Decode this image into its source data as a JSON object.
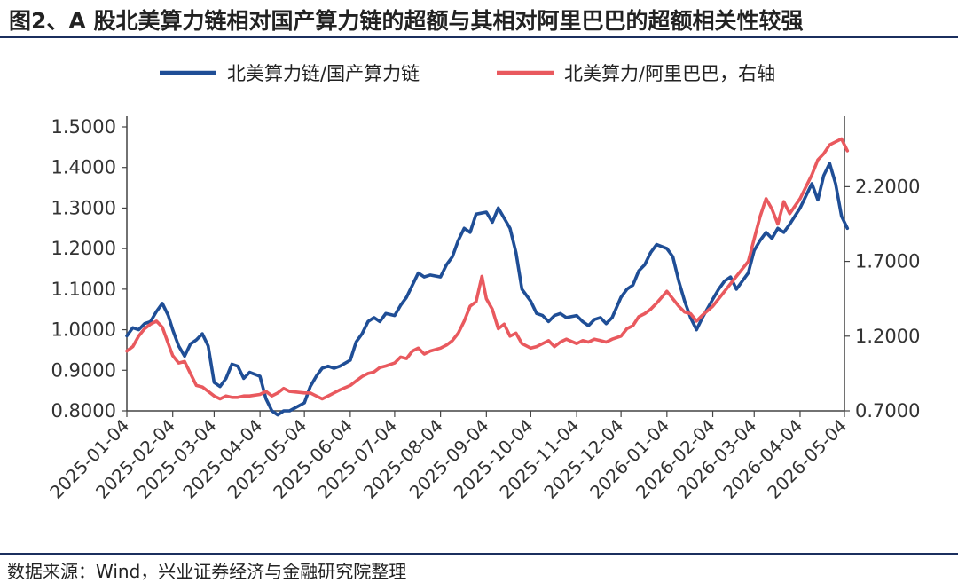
{
  "title": "图2、A 股北美算力链相对国产算力链的超额与其相对阿里巴巴的超额相关性较强",
  "source": "数据来源：Wind，兴业证券经济与金融研究院整理",
  "chart_data": {
    "type": "line",
    "title": "图2、A 股北美算力链相对国产算力链的超额与其相对阿里巴巴的超额相关性较强",
    "x_axis": {
      "type": "date",
      "ticks": [
        "2025-01-04",
        "2025-02-04",
        "2025-03-04",
        "2025-04-04",
        "2025-05-04",
        "2025-06-04",
        "2025-07-04",
        "2025-08-04",
        "2025-09-04",
        "2025-10-04",
        "2025-11-04",
        "2025-12-04",
        "2026-01-04",
        "2026-02-04",
        "2026-03-04",
        "2026-04-04",
        "2026-05-04"
      ],
      "range": [
        "2025-01-04",
        "2026-05-04"
      ]
    },
    "y_left": {
      "range": [
        0.8,
        1.5
      ],
      "ticks": [
        "0.8000",
        "0.9000",
        "1.0000",
        "1.1000",
        "1.2000",
        "1.3000",
        "1.4000",
        "1.5000"
      ]
    },
    "y_right": {
      "label": "右轴",
      "range": [
        0.7,
        2.6
      ],
      "ticks": [
        "0.7000",
        "1.2000",
        "1.7000",
        "2.2000"
      ]
    },
    "legend": {
      "position": "top"
    },
    "grid": false,
    "series": [
      {
        "name": "北美算力链/国产算力链",
        "axis": "left",
        "color": "#1f4e96",
        "points": [
          [
            "2025-01-04",
            0.985
          ],
          [
            "2025-01-08",
            1.005
          ],
          [
            "2025-01-12",
            1.0
          ],
          [
            "2025-01-16",
            1.015
          ],
          [
            "2025-01-20",
            1.02
          ],
          [
            "2025-01-24",
            1.045
          ],
          [
            "2025-01-28",
            1.065
          ],
          [
            "2025-02-01",
            1.035
          ],
          [
            "2025-02-04",
            1.0
          ],
          [
            "2025-02-08",
            0.96
          ],
          [
            "2025-02-12",
            0.935
          ],
          [
            "2025-02-16",
            0.965
          ],
          [
            "2025-02-20",
            0.975
          ],
          [
            "2025-02-24",
            0.99
          ],
          [
            "2025-02-28",
            0.96
          ],
          [
            "2025-03-04",
            0.87
          ],
          [
            "2025-03-08",
            0.86
          ],
          [
            "2025-03-12",
            0.88
          ],
          [
            "2025-03-16",
            0.915
          ],
          [
            "2025-03-20",
            0.91
          ],
          [
            "2025-03-24",
            0.88
          ],
          [
            "2025-03-28",
            0.895
          ],
          [
            "2025-04-04",
            0.885
          ],
          [
            "2025-04-08",
            0.83
          ],
          [
            "2025-04-12",
            0.8
          ],
          [
            "2025-04-16",
            0.79
          ],
          [
            "2025-04-20",
            0.8
          ],
          [
            "2025-04-24",
            0.8
          ],
          [
            "2025-05-04",
            0.82
          ],
          [
            "2025-05-08",
            0.86
          ],
          [
            "2025-05-12",
            0.885
          ],
          [
            "2025-05-16",
            0.905
          ],
          [
            "2025-05-20",
            0.91
          ],
          [
            "2025-05-24",
            0.905
          ],
          [
            "2025-05-28",
            0.91
          ],
          [
            "2025-06-04",
            0.925
          ],
          [
            "2025-06-08",
            0.97
          ],
          [
            "2025-06-12",
            0.99
          ],
          [
            "2025-06-16",
            1.02
          ],
          [
            "2025-06-20",
            1.03
          ],
          [
            "2025-06-24",
            1.02
          ],
          [
            "2025-06-28",
            1.04
          ],
          [
            "2025-07-04",
            1.035
          ],
          [
            "2025-07-08",
            1.06
          ],
          [
            "2025-07-12",
            1.08
          ],
          [
            "2025-07-16",
            1.11
          ],
          [
            "2025-07-20",
            1.14
          ],
          [
            "2025-07-24",
            1.13
          ],
          [
            "2025-07-28",
            1.135
          ],
          [
            "2025-08-04",
            1.13
          ],
          [
            "2025-08-08",
            1.16
          ],
          [
            "2025-08-12",
            1.18
          ],
          [
            "2025-08-16",
            1.22
          ],
          [
            "2025-08-20",
            1.25
          ],
          [
            "2025-08-24",
            1.24
          ],
          [
            "2025-08-28",
            1.285
          ],
          [
            "2025-09-04",
            1.29
          ],
          [
            "2025-09-08",
            1.265
          ],
          [
            "2025-09-12",
            1.3
          ],
          [
            "2025-09-16",
            1.275
          ],
          [
            "2025-09-20",
            1.25
          ],
          [
            "2025-09-24",
            1.19
          ],
          [
            "2025-09-28",
            1.1
          ],
          [
            "2025-10-04",
            1.07
          ],
          [
            "2025-10-08",
            1.04
          ],
          [
            "2025-10-12",
            1.035
          ],
          [
            "2025-10-16",
            1.02
          ],
          [
            "2025-10-20",
            1.035
          ],
          [
            "2025-10-24",
            1.04
          ],
          [
            "2025-10-28",
            1.03
          ],
          [
            "2025-11-04",
            1.035
          ],
          [
            "2025-11-08",
            1.02
          ],
          [
            "2025-11-12",
            1.01
          ],
          [
            "2025-11-16",
            1.025
          ],
          [
            "2025-11-20",
            1.03
          ],
          [
            "2025-11-24",
            1.015
          ],
          [
            "2025-11-28",
            1.03
          ],
          [
            "2025-12-04",
            1.08
          ],
          [
            "2025-12-08",
            1.1
          ],
          [
            "2025-12-12",
            1.11
          ],
          [
            "2025-12-16",
            1.145
          ],
          [
            "2025-12-20",
            1.16
          ],
          [
            "2025-12-24",
            1.19
          ],
          [
            "2025-12-28",
            1.21
          ],
          [
            "2026-01-04",
            1.2
          ],
          [
            "2026-01-08",
            1.18
          ],
          [
            "2026-01-12",
            1.12
          ],
          [
            "2026-01-16",
            1.07
          ],
          [
            "2026-01-20",
            1.03
          ],
          [
            "2026-01-24",
            1.0
          ],
          [
            "2026-01-28",
            1.03
          ],
          [
            "2026-02-04",
            1.075
          ],
          [
            "2026-02-08",
            1.1
          ],
          [
            "2026-02-12",
            1.12
          ],
          [
            "2026-02-16",
            1.13
          ],
          [
            "2026-02-20",
            1.1
          ],
          [
            "2026-02-24",
            1.12
          ],
          [
            "2026-02-28",
            1.14
          ],
          [
            "2026-03-04",
            1.195
          ],
          [
            "2026-03-08",
            1.22
          ],
          [
            "2026-03-12",
            1.24
          ],
          [
            "2026-03-16",
            1.225
          ],
          [
            "2026-03-20",
            1.25
          ],
          [
            "2026-03-24",
            1.24
          ],
          [
            "2026-03-28",
            1.26
          ],
          [
            "2026-04-04",
            1.3
          ],
          [
            "2026-04-08",
            1.33
          ],
          [
            "2026-04-12",
            1.36
          ],
          [
            "2026-04-16",
            1.32
          ],
          [
            "2026-04-20",
            1.38
          ],
          [
            "2026-04-24",
            1.41
          ],
          [
            "2026-04-28",
            1.36
          ],
          [
            "2026-05-02",
            1.28
          ],
          [
            "2026-05-06",
            1.25
          ]
        ]
      },
      {
        "name": "北美算力/阿里巴巴，右轴",
        "axis": "right",
        "color": "#e9595e",
        "points": [
          [
            "2025-01-04",
            1.1
          ],
          [
            "2025-01-08",
            1.13
          ],
          [
            "2025-01-12",
            1.2
          ],
          [
            "2025-01-16",
            1.25
          ],
          [
            "2025-01-20",
            1.28
          ],
          [
            "2025-01-24",
            1.3
          ],
          [
            "2025-01-28",
            1.26
          ],
          [
            "2025-02-01",
            1.15
          ],
          [
            "2025-02-04",
            1.07
          ],
          [
            "2025-02-08",
            1.02
          ],
          [
            "2025-02-12",
            1.03
          ],
          [
            "2025-02-16",
            0.95
          ],
          [
            "2025-02-20",
            0.87
          ],
          [
            "2025-02-24",
            0.86
          ],
          [
            "2025-02-28",
            0.83
          ],
          [
            "2025-03-04",
            0.8
          ],
          [
            "2025-03-08",
            0.78
          ],
          [
            "2025-03-12",
            0.8
          ],
          [
            "2025-03-16",
            0.79
          ],
          [
            "2025-03-20",
            0.79
          ],
          [
            "2025-03-24",
            0.8
          ],
          [
            "2025-03-28",
            0.8
          ],
          [
            "2025-04-04",
            0.81
          ],
          [
            "2025-04-08",
            0.83
          ],
          [
            "2025-04-12",
            0.8
          ],
          [
            "2025-04-16",
            0.82
          ],
          [
            "2025-04-20",
            0.85
          ],
          [
            "2025-04-24",
            0.83
          ],
          [
            "2025-05-04",
            0.82
          ],
          [
            "2025-05-08",
            0.82
          ],
          [
            "2025-05-12",
            0.8
          ],
          [
            "2025-05-16",
            0.78
          ],
          [
            "2025-05-20",
            0.8
          ],
          [
            "2025-05-24",
            0.82
          ],
          [
            "2025-05-28",
            0.84
          ],
          [
            "2025-06-04",
            0.87
          ],
          [
            "2025-06-08",
            0.9
          ],
          [
            "2025-06-12",
            0.93
          ],
          [
            "2025-06-16",
            0.95
          ],
          [
            "2025-06-20",
            0.96
          ],
          [
            "2025-06-24",
            0.99
          ],
          [
            "2025-06-28",
            1.0
          ],
          [
            "2025-07-04",
            1.02
          ],
          [
            "2025-07-08",
            1.06
          ],
          [
            "2025-07-12",
            1.05
          ],
          [
            "2025-07-16",
            1.1
          ],
          [
            "2025-07-20",
            1.12
          ],
          [
            "2025-07-24",
            1.08
          ],
          [
            "2025-07-28",
            1.1
          ],
          [
            "2025-08-04",
            1.12
          ],
          [
            "2025-08-08",
            1.14
          ],
          [
            "2025-08-12",
            1.17
          ],
          [
            "2025-08-16",
            1.22
          ],
          [
            "2025-08-20",
            1.3
          ],
          [
            "2025-08-24",
            1.4
          ],
          [
            "2025-08-28",
            1.43
          ],
          [
            "2025-09-01",
            1.6
          ],
          [
            "2025-09-04",
            1.45
          ],
          [
            "2025-09-08",
            1.38
          ],
          [
            "2025-09-12",
            1.25
          ],
          [
            "2025-09-16",
            1.28
          ],
          [
            "2025-09-20",
            1.2
          ],
          [
            "2025-09-24",
            1.22
          ],
          [
            "2025-09-28",
            1.15
          ],
          [
            "2025-10-04",
            1.12
          ],
          [
            "2025-10-08",
            1.13
          ],
          [
            "2025-10-12",
            1.15
          ],
          [
            "2025-10-16",
            1.17
          ],
          [
            "2025-10-20",
            1.13
          ],
          [
            "2025-10-24",
            1.16
          ],
          [
            "2025-10-28",
            1.18
          ],
          [
            "2025-11-04",
            1.15
          ],
          [
            "2025-11-08",
            1.17
          ],
          [
            "2025-11-12",
            1.16
          ],
          [
            "2025-11-16",
            1.18
          ],
          [
            "2025-11-20",
            1.17
          ],
          [
            "2025-11-24",
            1.16
          ],
          [
            "2025-11-28",
            1.18
          ],
          [
            "2025-12-04",
            1.2
          ],
          [
            "2025-12-08",
            1.25
          ],
          [
            "2025-12-12",
            1.27
          ],
          [
            "2025-12-16",
            1.33
          ],
          [
            "2025-12-20",
            1.35
          ],
          [
            "2025-12-24",
            1.38
          ],
          [
            "2025-12-28",
            1.42
          ],
          [
            "2026-01-04",
            1.5
          ],
          [
            "2026-01-08",
            1.45
          ],
          [
            "2026-01-12",
            1.4
          ],
          [
            "2026-01-16",
            1.36
          ],
          [
            "2026-01-20",
            1.35
          ],
          [
            "2026-01-24",
            1.3
          ],
          [
            "2026-01-28",
            1.34
          ],
          [
            "2026-02-04",
            1.4
          ],
          [
            "2026-02-08",
            1.45
          ],
          [
            "2026-02-12",
            1.5
          ],
          [
            "2026-02-16",
            1.55
          ],
          [
            "2026-02-20",
            1.6
          ],
          [
            "2026-02-24",
            1.65
          ],
          [
            "2026-02-28",
            1.7
          ],
          [
            "2026-03-04",
            1.85
          ],
          [
            "2026-03-08",
            2.0
          ],
          [
            "2026-03-12",
            2.12
          ],
          [
            "2026-03-16",
            2.05
          ],
          [
            "2026-03-20",
            1.95
          ],
          [
            "2026-03-24",
            2.1
          ],
          [
            "2026-03-28",
            2.02
          ],
          [
            "2026-04-04",
            2.12
          ],
          [
            "2026-04-08",
            2.2
          ],
          [
            "2026-04-12",
            2.28
          ],
          [
            "2026-04-16",
            2.38
          ],
          [
            "2026-04-20",
            2.42
          ],
          [
            "2026-04-24",
            2.48
          ],
          [
            "2026-04-28",
            2.5
          ],
          [
            "2026-05-02",
            2.52
          ],
          [
            "2026-05-06",
            2.44
          ]
        ]
      }
    ]
  }
}
